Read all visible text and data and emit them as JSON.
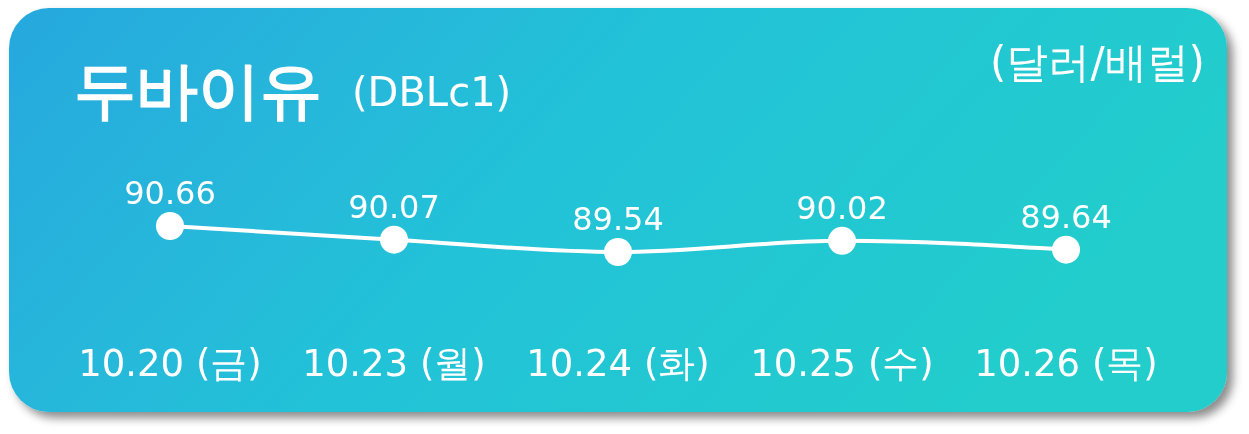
{
  "chart_data": {
    "type": "line",
    "title": "두바이유",
    "subtitle": "(DBLc1)",
    "ylabel": "(달러/배럴)",
    "categories": [
      "10.20 (금)",
      "10.23 (월)",
      "10.24 (화)",
      "10.25 (수)",
      "10.26 (목)"
    ],
    "series": [
      {
        "color": "#ffffff",
        "values": [
          90.66,
          90.07,
          89.54,
          90.02,
          89.64
        ]
      }
    ],
    "data_labels": true,
    "marker": "circle",
    "line_style": "solid"
  }
}
